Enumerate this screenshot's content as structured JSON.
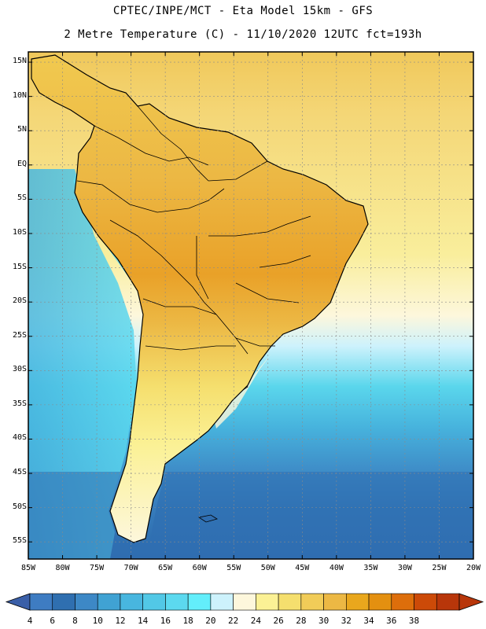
{
  "header": {
    "line1": "CPTEC/INPE/MCT -  Eta Model 15km - GFS",
    "line2": "2 Metre Temperature (C) - 11/10/2020 12UTC fct=193h"
  },
  "map": {
    "lat_labels": [
      "15N",
      "10N",
      "5N",
      "EQ",
      "5S",
      "10S",
      "15S",
      "20S",
      "25S",
      "30S",
      "35S",
      "40S",
      "45S",
      "50S",
      "55S"
    ],
    "lon_labels": [
      "85W",
      "80W",
      "75W",
      "70W",
      "65W",
      "60W",
      "55W",
      "50W",
      "45W",
      "40W",
      "35W",
      "30W",
      "25W",
      "20W"
    ],
    "lon_range": [
      -85,
      -20
    ],
    "lat_range": [
      16.5,
      -57.5
    ]
  },
  "colorbar": {
    "unit": "C",
    "labels": [
      "4",
      "6",
      "8",
      "10",
      "12",
      "14",
      "16",
      "18",
      "20",
      "22",
      "24",
      "26",
      "28",
      "30",
      "32",
      "34",
      "36",
      "38"
    ],
    "colors": [
      "#3e7cc2",
      "#2f6fb0",
      "#3d88c6",
      "#40a2d3",
      "#48b6df",
      "#52c8e6",
      "#5cd9ef",
      "#63eefb",
      "#cdf2fc",
      "#fdf7dc",
      "#fbf195",
      "#f5df6e",
      "#f1cc58",
      "#ecb844",
      "#e9a71d",
      "#e49010",
      "#dd6e0b",
      "#cc4a08",
      "#b8360a"
    ],
    "low_end_color": "#3a5fa8",
    "high_end_color": "#b8360a"
  }
}
